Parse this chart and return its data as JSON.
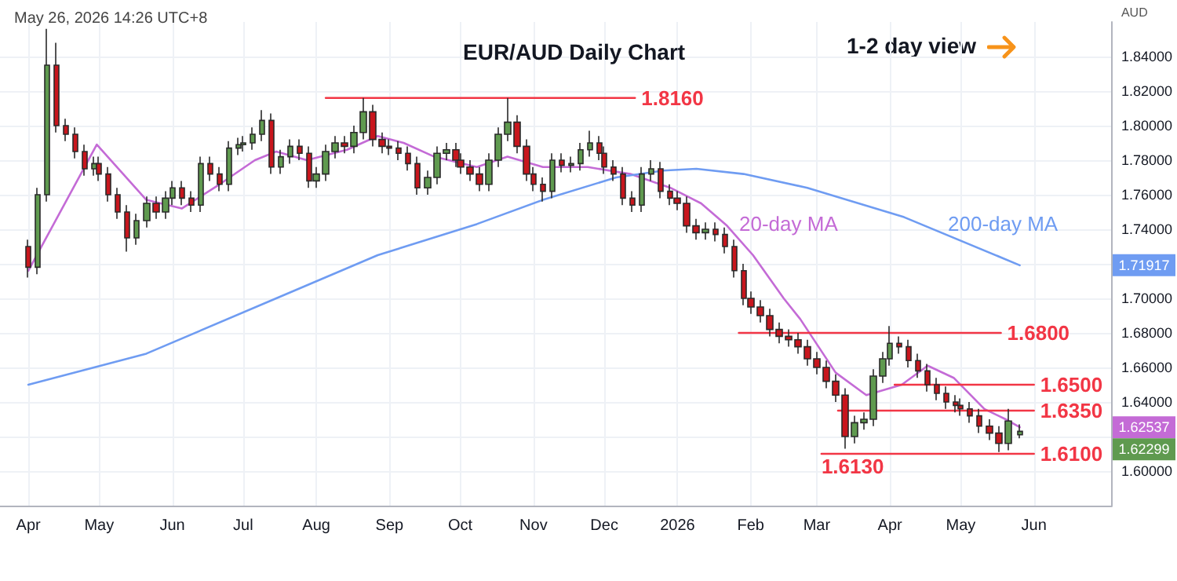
{
  "chart_data": {
    "type": "candlestick",
    "title": "EUR/AUD Daily Chart",
    "subtitle": "May 26, 2026 14:26 UTC+8",
    "ylabel": "AUD",
    "x": [
      "2025-04-01",
      "2025-04-05",
      "2025-04-09",
      "2025-04-13",
      "2025-04-17",
      "2025-04-21",
      "2025-04-25",
      "2025-04-29",
      "2025-05-01",
      "2025-05-05",
      "2025-05-09",
      "2025-05-13",
      "2025-05-17",
      "2025-05-21",
      "2025-05-25",
      "2025-05-29",
      "2025-06-01",
      "2025-06-05",
      "2025-06-09",
      "2025-06-13",
      "2025-06-17",
      "2025-06-21",
      "2025-06-25",
      "2025-06-29",
      "2025-07-01",
      "2025-07-05",
      "2025-07-09",
      "2025-07-13",
      "2025-07-17",
      "2025-07-21",
      "2025-07-25",
      "2025-07-29",
      "2025-08-01",
      "2025-08-05",
      "2025-08-09",
      "2025-08-13",
      "2025-08-17",
      "2025-08-21",
      "2025-08-25",
      "2025-08-29",
      "2025-09-01",
      "2025-09-05",
      "2025-09-09",
      "2025-09-13",
      "2025-09-17",
      "2025-09-21",
      "2025-09-25",
      "2025-09-29",
      "2025-10-01",
      "2025-10-05",
      "2025-10-09",
      "2025-10-13",
      "2025-10-17",
      "2025-10-21",
      "2025-10-25",
      "2025-10-29",
      "2025-11-01",
      "2025-11-05",
      "2025-11-09",
      "2025-11-13",
      "2025-11-17",
      "2025-11-21",
      "2025-11-25",
      "2025-11-29",
      "2025-12-01",
      "2025-12-05",
      "2025-12-09",
      "2025-12-13",
      "2025-12-17",
      "2025-12-21",
      "2025-12-25",
      "2025-12-29",
      "2026-01-01",
      "2026-01-05",
      "2026-01-09",
      "2026-01-13",
      "2026-01-17",
      "2026-01-21",
      "2026-01-25",
      "2026-01-29",
      "2026-02-01",
      "2026-02-05",
      "2026-02-09",
      "2026-02-13",
      "2026-02-17",
      "2026-02-21",
      "2026-02-25",
      "2026-03-01",
      "2026-03-05",
      "2026-03-09",
      "2026-03-13",
      "2026-03-17",
      "2026-03-21",
      "2026-03-25",
      "2026-03-29",
      "2026-04-01",
      "2026-04-05",
      "2026-04-09",
      "2026-04-13",
      "2026-04-17",
      "2026-04-21",
      "2026-04-25",
      "2026-04-29",
      "2026-05-01",
      "2026-05-05",
      "2026-05-09",
      "2026-05-13",
      "2026-05-17",
      "2026-05-21",
      "2026-05-26"
    ],
    "ohlc": [
      [
        1.73,
        1.734,
        1.712,
        1.718
      ],
      [
        1.718,
        1.764,
        1.714,
        1.76
      ],
      [
        1.76,
        1.856,
        1.756,
        1.835
      ],
      [
        1.835,
        1.848,
        1.796,
        1.8
      ],
      [
        1.8,
        1.804,
        1.791,
        1.795
      ],
      [
        1.795,
        1.799,
        1.781,
        1.785
      ],
      [
        1.785,
        1.789,
        1.771,
        1.775
      ],
      [
        1.775,
        1.782,
        1.771,
        1.778
      ],
      [
        1.778,
        1.782,
        1.768,
        1.772
      ],
      [
        1.772,
        1.776,
        1.756,
        1.76
      ],
      [
        1.76,
        1.764,
        1.746,
        1.75
      ],
      [
        1.75,
        1.754,
        1.727,
        1.735
      ],
      [
        1.735,
        1.749,
        1.731,
        1.745
      ],
      [
        1.745,
        1.759,
        1.741,
        1.755
      ],
      [
        1.755,
        1.759,
        1.746,
        1.75
      ],
      [
        1.75,
        1.762,
        1.746,
        1.758
      ],
      [
        1.758,
        1.768,
        1.754,
        1.764
      ],
      [
        1.764,
        1.768,
        1.754,
        1.758
      ],
      [
        1.758,
        1.762,
        1.75,
        1.754
      ],
      [
        1.754,
        1.782,
        1.75,
        1.778
      ],
      [
        1.778,
        1.782,
        1.768,
        1.772
      ],
      [
        1.772,
        1.776,
        1.762,
        1.766
      ],
      [
        1.766,
        1.791,
        1.762,
        1.787
      ],
      [
        1.787,
        1.793,
        1.783,
        1.789
      ],
      [
        1.789,
        1.794,
        1.785,
        1.79
      ],
      [
        1.79,
        1.799,
        1.786,
        1.795
      ],
      [
        1.795,
        1.809,
        1.791,
        1.803
      ],
      [
        1.803,
        1.807,
        1.772,
        1.776
      ],
      [
        1.776,
        1.786,
        1.772,
        1.782
      ],
      [
        1.782,
        1.792,
        1.778,
        1.788
      ],
      [
        1.788,
        1.792,
        1.78,
        1.784
      ],
      [
        1.784,
        1.788,
        1.764,
        1.768
      ],
      [
        1.768,
        1.776,
        1.764,
        1.772
      ],
      [
        1.772,
        1.789,
        1.768,
        1.785
      ],
      [
        1.785,
        1.794,
        1.781,
        1.79
      ],
      [
        1.79,
        1.794,
        1.784,
        1.788
      ],
      [
        1.788,
        1.8,
        1.784,
        1.796
      ],
      [
        1.796,
        1.816,
        1.792,
        1.808
      ],
      [
        1.808,
        1.812,
        1.788,
        1.792
      ],
      [
        1.792,
        1.796,
        1.784,
        1.788
      ],
      [
        1.788,
        1.792,
        1.783,
        1.787
      ],
      [
        1.787,
        1.791,
        1.78,
        1.784
      ],
      [
        1.784,
        1.788,
        1.774,
        1.778
      ],
      [
        1.778,
        1.782,
        1.76,
        1.764
      ],
      [
        1.764,
        1.774,
        1.76,
        1.77
      ],
      [
        1.77,
        1.788,
        1.766,
        1.784
      ],
      [
        1.784,
        1.79,
        1.78,
        1.786
      ],
      [
        1.786,
        1.79,
        1.776,
        1.78
      ],
      [
        1.78,
        1.784,
        1.772,
        1.776
      ],
      [
        1.776,
        1.78,
        1.768,
        1.772
      ],
      [
        1.772,
        1.776,
        1.762,
        1.766
      ],
      [
        1.766,
        1.784,
        1.762,
        1.78
      ],
      [
        1.78,
        1.799,
        1.776,
        1.795
      ],
      [
        1.795,
        1.816,
        1.791,
        1.802
      ],
      [
        1.802,
        1.806,
        1.784,
        1.788
      ],
      [
        1.788,
        1.792,
        1.768,
        1.772
      ],
      [
        1.772,
        1.776,
        1.762,
        1.766
      ],
      [
        1.766,
        1.77,
        1.756,
        1.762
      ],
      [
        1.762,
        1.784,
        1.758,
        1.78
      ],
      [
        1.78,
        1.784,
        1.773,
        1.777
      ],
      [
        1.777,
        1.782,
        1.773,
        1.778
      ],
      [
        1.778,
        1.79,
        1.774,
        1.786
      ],
      [
        1.786,
        1.797,
        1.782,
        1.79
      ],
      [
        1.79,
        1.794,
        1.78,
        1.784
      ],
      [
        1.784,
        1.788,
        1.772,
        1.776
      ],
      [
        1.776,
        1.78,
        1.768,
        1.772
      ],
      [
        1.772,
        1.776,
        1.754,
        1.758
      ],
      [
        1.758,
        1.762,
        1.75,
        1.754
      ],
      [
        1.754,
        1.776,
        1.75,
        1.772
      ],
      [
        1.772,
        1.78,
        1.768,
        1.775
      ],
      [
        1.775,
        1.779,
        1.758,
        1.762
      ],
      [
        1.762,
        1.766,
        1.754,
        1.758
      ],
      [
        1.758,
        1.762,
        1.751,
        1.755
      ],
      [
        1.755,
        1.759,
        1.738,
        1.742
      ],
      [
        1.742,
        1.746,
        1.734,
        1.738
      ],
      [
        1.738,
        1.744,
        1.734,
        1.74
      ],
      [
        1.74,
        1.744,
        1.733,
        1.737
      ],
      [
        1.737,
        1.741,
        1.726,
        1.73
      ],
      [
        1.73,
        1.734,
        1.712,
        1.716
      ],
      [
        1.716,
        1.72,
        1.696,
        1.7
      ],
      [
        1.7,
        1.704,
        1.691,
        1.695
      ],
      [
        1.695,
        1.699,
        1.686,
        1.69
      ],
      [
        1.69,
        1.694,
        1.678,
        1.682
      ],
      [
        1.682,
        1.686,
        1.674,
        1.678
      ],
      [
        1.678,
        1.682,
        1.672,
        1.676
      ],
      [
        1.676,
        1.68,
        1.668,
        1.672
      ],
      [
        1.672,
        1.676,
        1.661,
        1.665
      ],
      [
        1.665,
        1.669,
        1.656,
        1.66
      ],
      [
        1.66,
        1.664,
        1.648,
        1.652
      ],
      [
        1.652,
        1.656,
        1.64,
        1.644
      ],
      [
        1.644,
        1.648,
        1.613,
        1.62
      ],
      [
        1.62,
        1.632,
        1.616,
        1.628
      ],
      [
        1.628,
        1.634,
        1.624,
        1.63
      ],
      [
        1.63,
        1.659,
        1.626,
        1.655
      ],
      [
        1.655,
        1.669,
        1.651,
        1.665
      ],
      [
        1.665,
        1.684,
        1.661,
        1.674
      ],
      [
        1.674,
        1.678,
        1.668,
        1.672
      ],
      [
        1.672,
        1.676,
        1.66,
        1.664
      ],
      [
        1.664,
        1.668,
        1.654,
        1.658
      ],
      [
        1.658,
        1.662,
        1.646,
        1.65
      ],
      [
        1.65,
        1.654,
        1.641,
        1.645
      ],
      [
        1.645,
        1.649,
        1.636,
        1.64
      ],
      [
        1.64,
        1.644,
        1.634,
        1.638
      ],
      [
        1.638,
        1.642,
        1.632,
        1.636
      ],
      [
        1.636,
        1.64,
        1.628,
        1.632
      ],
      [
        1.632,
        1.636,
        1.622,
        1.626
      ],
      [
        1.626,
        1.63,
        1.618,
        1.622
      ],
      [
        1.622,
        1.626,
        1.611,
        1.616
      ],
      [
        1.616,
        1.636,
        1.612,
        1.629
      ],
      [
        1.621,
        1.627,
        1.619,
        1.62299
      ]
    ],
    "series": [
      {
        "type": "line",
        "name": "20-day MA",
        "color": "#c46bd6",
        "x": [
          "2025-04-01",
          "2025-04-30",
          "2025-05-21",
          "2025-06-05",
          "2025-06-21",
          "2025-07-06",
          "2025-07-15",
          "2025-07-28",
          "2025-08-14",
          "2025-08-27",
          "2025-09-07",
          "2025-09-20",
          "2025-10-08",
          "2025-10-21",
          "2025-11-05",
          "2025-11-24",
          "2025-12-12",
          "2025-12-29",
          "2026-01-11",
          "2026-01-22",
          "2026-02-02",
          "2026-02-15",
          "2026-02-22",
          "2026-03-09",
          "2026-03-22",
          "2026-04-06",
          "2026-04-17",
          "2026-04-28",
          "2026-05-11",
          "2026-05-20",
          "2026-05-26"
        ],
        "values": [
          1.716,
          1.789,
          1.757,
          1.752,
          1.766,
          1.78,
          1.785,
          1.78,
          1.786,
          1.794,
          1.79,
          1.782,
          1.776,
          1.782,
          1.776,
          1.776,
          1.772,
          1.764,
          1.755,
          1.742,
          1.725,
          1.7,
          1.688,
          1.657,
          1.644,
          1.65,
          1.661,
          1.654,
          1.636,
          1.63,
          1.62537
        ]
      },
      {
        "type": "line",
        "name": "200-day MA",
        "color": "#6f9cf2",
        "x": [
          "2025-04-01",
          "2025-05-21",
          "2025-07-15",
          "2025-08-27",
          "2025-10-08",
          "2025-11-05",
          "2025-12-06",
          "2025-12-26",
          "2026-01-09",
          "2026-01-29",
          "2026-02-25",
          "2026-04-07",
          "2026-05-26"
        ],
        "values": [
          1.65,
          1.668,
          1.7,
          1.725,
          1.743,
          1.757,
          1.77,
          1.774,
          1.775,
          1.772,
          1.764,
          1.747,
          1.71917
        ]
      },
      {
        "type": "line",
        "name": "1.8160",
        "color": "#f23645",
        "x": [
          "2025-08-05",
          "2025-12-14"
        ],
        "values": [
          1.816,
          1.816
        ]
      },
      {
        "type": "line",
        "name": "1.6800",
        "color": "#f23645",
        "x": [
          "2026-01-27",
          "2026-05-18"
        ],
        "values": [
          1.68,
          1.68
        ]
      },
      {
        "type": "line",
        "name": "1.6500",
        "color": "#f23645",
        "x": [
          "2026-04-03",
          "2026-06-01"
        ],
        "values": [
          1.65,
          1.65
        ]
      },
      {
        "type": "line",
        "name": "1.6350",
        "color": "#f23645",
        "x": [
          "2026-03-10",
          "2026-06-01"
        ],
        "values": [
          1.635,
          1.635
        ]
      },
      {
        "type": "line",
        "name": "1.6100",
        "color": "#f23645",
        "x": [
          "2026-03-03",
          "2026-06-01"
        ],
        "values": [
          1.61,
          1.61
        ]
      }
    ],
    "annotations": [
      "1-2 day view",
      "1.62299",
      {
        "text": "1.6130",
        "x": "2026-03-03",
        "y": 1.613
      },
      {
        "text": "1.71917",
        "y": 1.71917
      },
      {
        "text": "1.62537",
        "y": 1.62537
      }
    ],
    "xlim": [
      "2025-03-20",
      "2026-07-04"
    ],
    "xticks": [
      {
        "value": "2025-04-01",
        "label": "Apr"
      },
      {
        "value": "2025-05-01",
        "label": "May"
      },
      {
        "value": "2025-06-01",
        "label": "Jun"
      },
      {
        "value": "2025-07-01",
        "label": "Jul"
      },
      {
        "value": "2025-08-01",
        "label": "Aug"
      },
      {
        "value": "2025-09-01",
        "label": "Sep"
      },
      {
        "value": "2025-10-01",
        "label": "Oct"
      },
      {
        "value": "2025-11-01",
        "label": "Nov"
      },
      {
        "value": "2025-12-01",
        "label": "Dec"
      },
      {
        "value": "2026-01-01",
        "label": "2026"
      },
      {
        "value": "2026-02-01",
        "label": "Feb"
      },
      {
        "value": "2026-03-01",
        "label": "Mar"
      },
      {
        "value": "2026-04-01",
        "label": "Apr"
      },
      {
        "value": "2026-05-01",
        "label": "May"
      },
      {
        "value": "2026-06-01",
        "label": "Jun"
      }
    ],
    "ylim": [
      1.58,
      1.86
    ],
    "yticks": [
      {
        "value": 1.6,
        "label": "1.60000"
      },
      {
        "value": 1.62,
        "label": null
      },
      {
        "value": 1.64,
        "label": "1.64000"
      },
      {
        "value": 1.66,
        "label": "1.66000"
      },
      {
        "value": 1.68,
        "label": "1.68000"
      },
      {
        "value": 1.7,
        "label": "1.70000"
      },
      {
        "value": 1.72,
        "label": null
      },
      {
        "value": 1.74,
        "label": "1.74000"
      },
      {
        "value": 1.76,
        "label": "1.76000"
      },
      {
        "value": 1.78,
        "label": "1.78000"
      },
      {
        "value": 1.8,
        "label": "1.80000"
      },
      {
        "value": 1.82,
        "label": "1.82000"
      },
      {
        "value": 1.84,
        "label": "1.84000"
      }
    ],
    "grid": true
  }
}
